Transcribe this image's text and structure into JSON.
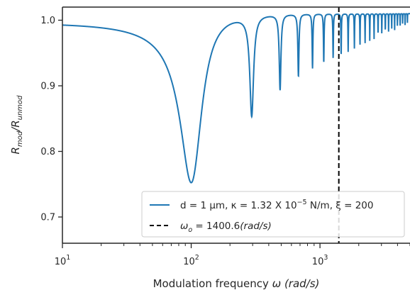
{
  "chart_data": {
    "type": "line",
    "xscale": "log",
    "xlim": [
      10,
      5000
    ],
    "ylim": [
      0.66,
      1.02
    ],
    "grid": false,
    "legend_location": "lower-right",
    "x_ticks": [
      {
        "value": 10,
        "base": "10",
        "exp": "1"
      },
      {
        "value": 100,
        "base": "10",
        "exp": "2"
      },
      {
        "value": 1000,
        "base": "10",
        "exp": "3"
      }
    ],
    "y_ticks": [
      {
        "value": 0.7,
        "label": "0.7"
      },
      {
        "value": 0.8,
        "label": "0.8"
      },
      {
        "value": 0.9,
        "label": "0.9"
      },
      {
        "value": 1.0,
        "label": "1.0"
      }
    ],
    "xlabel": {
      "text": "Modulation frequency ",
      "symbol": "ω",
      "unit": "(rad/s)"
    },
    "ylabel": {
      "main": "R",
      "num_sub": "mod",
      "den_sub": "unmod"
    },
    "series": [
      {
        "kind": "resonance-curve",
        "color": "#1f77b4",
        "legend": {
          "text": "d = 1 μm, κ = 1.32 X 10",
          "sup": "−5",
          "tail": " N/m, ξ = 200"
        },
        "baseline": 1.01,
        "dip_centers": [
          100,
          295,
          490,
          680,
          875,
          1070,
          1265,
          1460,
          1655,
          1850,
          2045,
          2240,
          2435,
          2630,
          2825,
          3020,
          3215,
          3410,
          3605,
          3800,
          3995,
          4190,
          4385,
          4580,
          4775
        ],
        "dip_minima": [
          0.753,
          0.857,
          0.895,
          0.915,
          0.927,
          0.935,
          0.942,
          0.946,
          0.952,
          0.957,
          0.961,
          0.965,
          0.968,
          0.971,
          0.974,
          0.977,
          0.979,
          0.981,
          0.983,
          0.985,
          0.987,
          0.989,
          0.991,
          0.992,
          0.994
        ],
        "widths": [
          24,
          12,
          9,
          8,
          7,
          7,
          7,
          7,
          7,
          7,
          7,
          7,
          7,
          7,
          7,
          7,
          7,
          7,
          7,
          7,
          7,
          7,
          7,
          7,
          7
        ]
      },
      {
        "kind": "vline",
        "x": 1400.6,
        "color": "#000000",
        "legend": {
          "symbol": "ω",
          "sub": "o",
          "text": " = 1400.6",
          "unit": "(rad/s)"
        }
      }
    ]
  }
}
